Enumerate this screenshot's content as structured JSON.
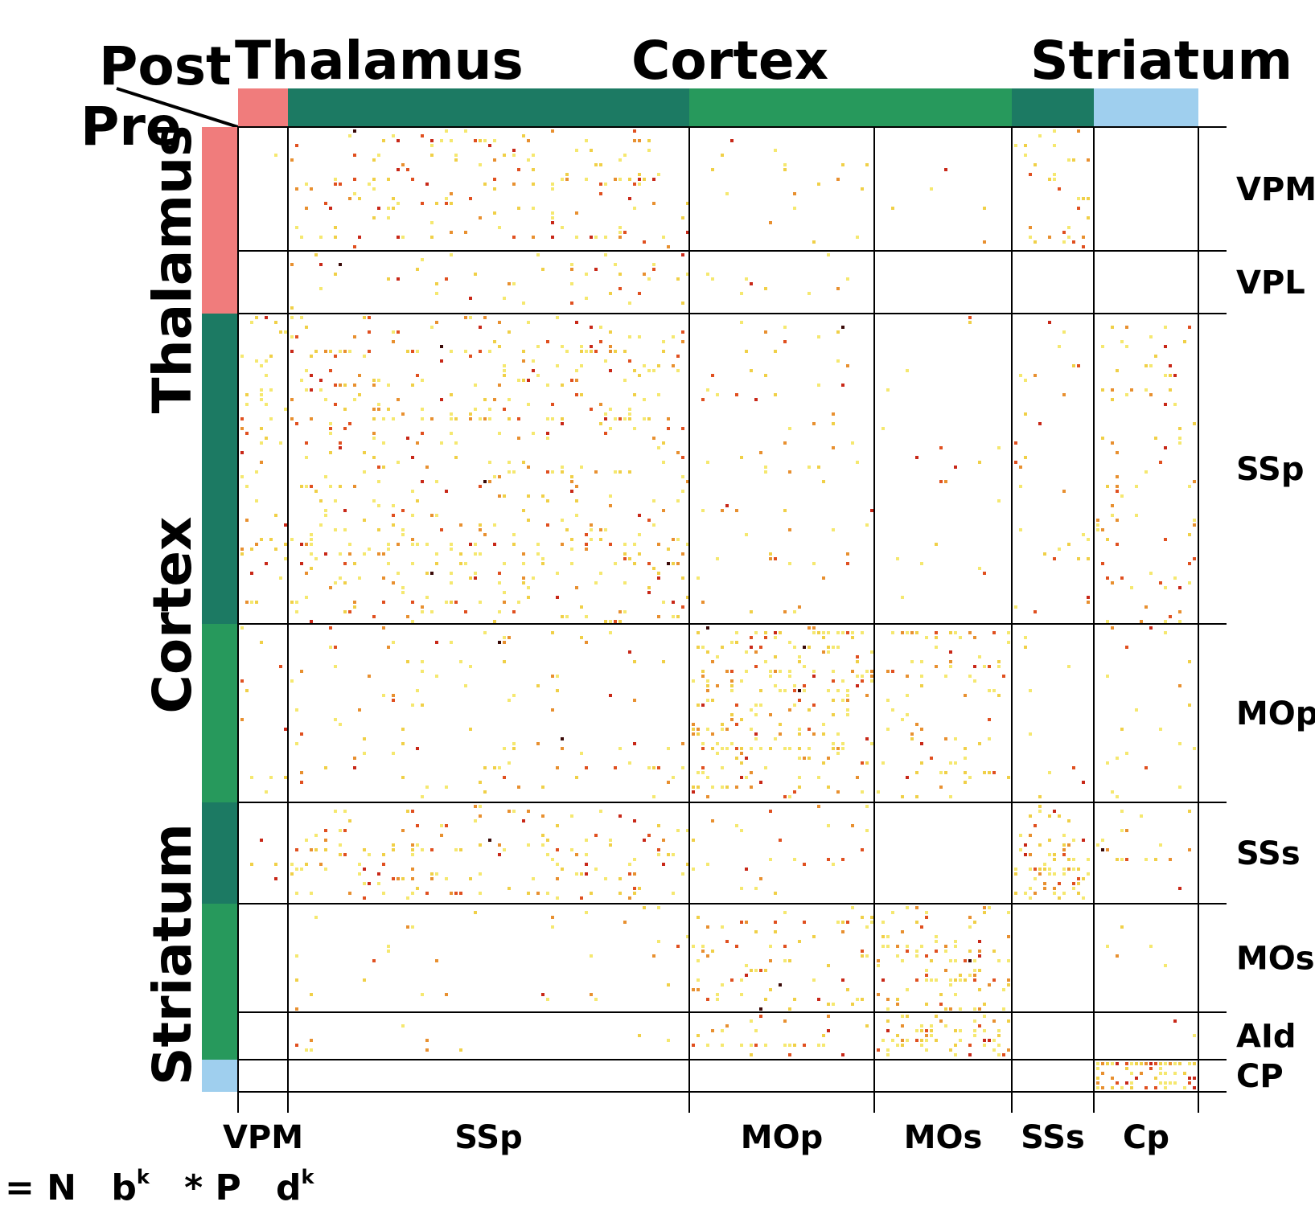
{
  "chart_data": {
    "type": "heatmap",
    "corner": {
      "post": "Post",
      "pre": "Pre"
    },
    "top_groups": [
      {
        "label": "Thalamus"
      },
      {
        "label": "Cortex"
      },
      {
        "label": "Striatum"
      }
    ],
    "left_groups": [
      {
        "label": "Thalamus"
      },
      {
        "label": "Cortex"
      },
      {
        "label": "Striatum"
      }
    ],
    "columns": [
      {
        "label": "VPM",
        "region": "Thalamus",
        "color": "#f07c7c"
      },
      {
        "label": "SSp",
        "region": "Cortex",
        "color": "#1c7a63"
      },
      {
        "label": "MOp",
        "region": "Cortex",
        "color": "#27995c"
      },
      {
        "label": "MOs",
        "region": "Cortex",
        "color": "#27995c"
      },
      {
        "label": "SSs",
        "region": "Cortex",
        "color": "#1c7a63"
      },
      {
        "label": "Cp",
        "region": "Striatum",
        "color": "#9fcfee"
      }
    ],
    "rows": [
      {
        "label": "VPM",
        "region": "Thalamus",
        "color": "#f07c7c"
      },
      {
        "label": "VPL",
        "region": "Thalamus",
        "color": "#f07c7c"
      },
      {
        "label": "SSp",
        "region": "Cortex",
        "color": "#1c7a63"
      },
      {
        "label": "MOp",
        "region": "Cortex",
        "color": "#27995c"
      },
      {
        "label": "SSs",
        "region": "Cortex",
        "color": "#1c7a63"
      },
      {
        "label": "MOs",
        "region": "Cortex",
        "color": "#27995c"
      },
      {
        "label": "AId",
        "region": "Cortex",
        "color": "#27995c"
      },
      {
        "label": "CP",
        "region": "Striatum",
        "color": "#9fcfee"
      }
    ],
    "block_density": [
      [
        0.01,
        0.09,
        0.03,
        0.01,
        0.1,
        0.0
      ],
      [
        0.0,
        0.07,
        0.03,
        0.0,
        0.01,
        0.0
      ],
      [
        0.12,
        0.13,
        0.04,
        0.02,
        0.05,
        0.05
      ],
      [
        0.05,
        0.04,
        0.22,
        0.14,
        0.02,
        0.05
      ],
      [
        0.03,
        0.12,
        0.04,
        0.0,
        0.3,
        0.05
      ],
      [
        0.0,
        0.02,
        0.09,
        0.22,
        0.0,
        0.02
      ],
      [
        0.0,
        0.02,
        0.12,
        0.3,
        0.0,
        0.04
      ],
      [
        0.0,
        0.0,
        0.0,
        0.0,
        0.0,
        0.5
      ]
    ],
    "cell_colors": [
      "#f5e870",
      "#f0d048",
      "#e89030",
      "#e05020",
      "#c82818",
      "#3a0a08"
    ],
    "formula": {
      "prefix": "= N",
      "term1": "b",
      "sup1": "k",
      "star": "* P",
      "term2": "d",
      "sup2": "k"
    }
  }
}
